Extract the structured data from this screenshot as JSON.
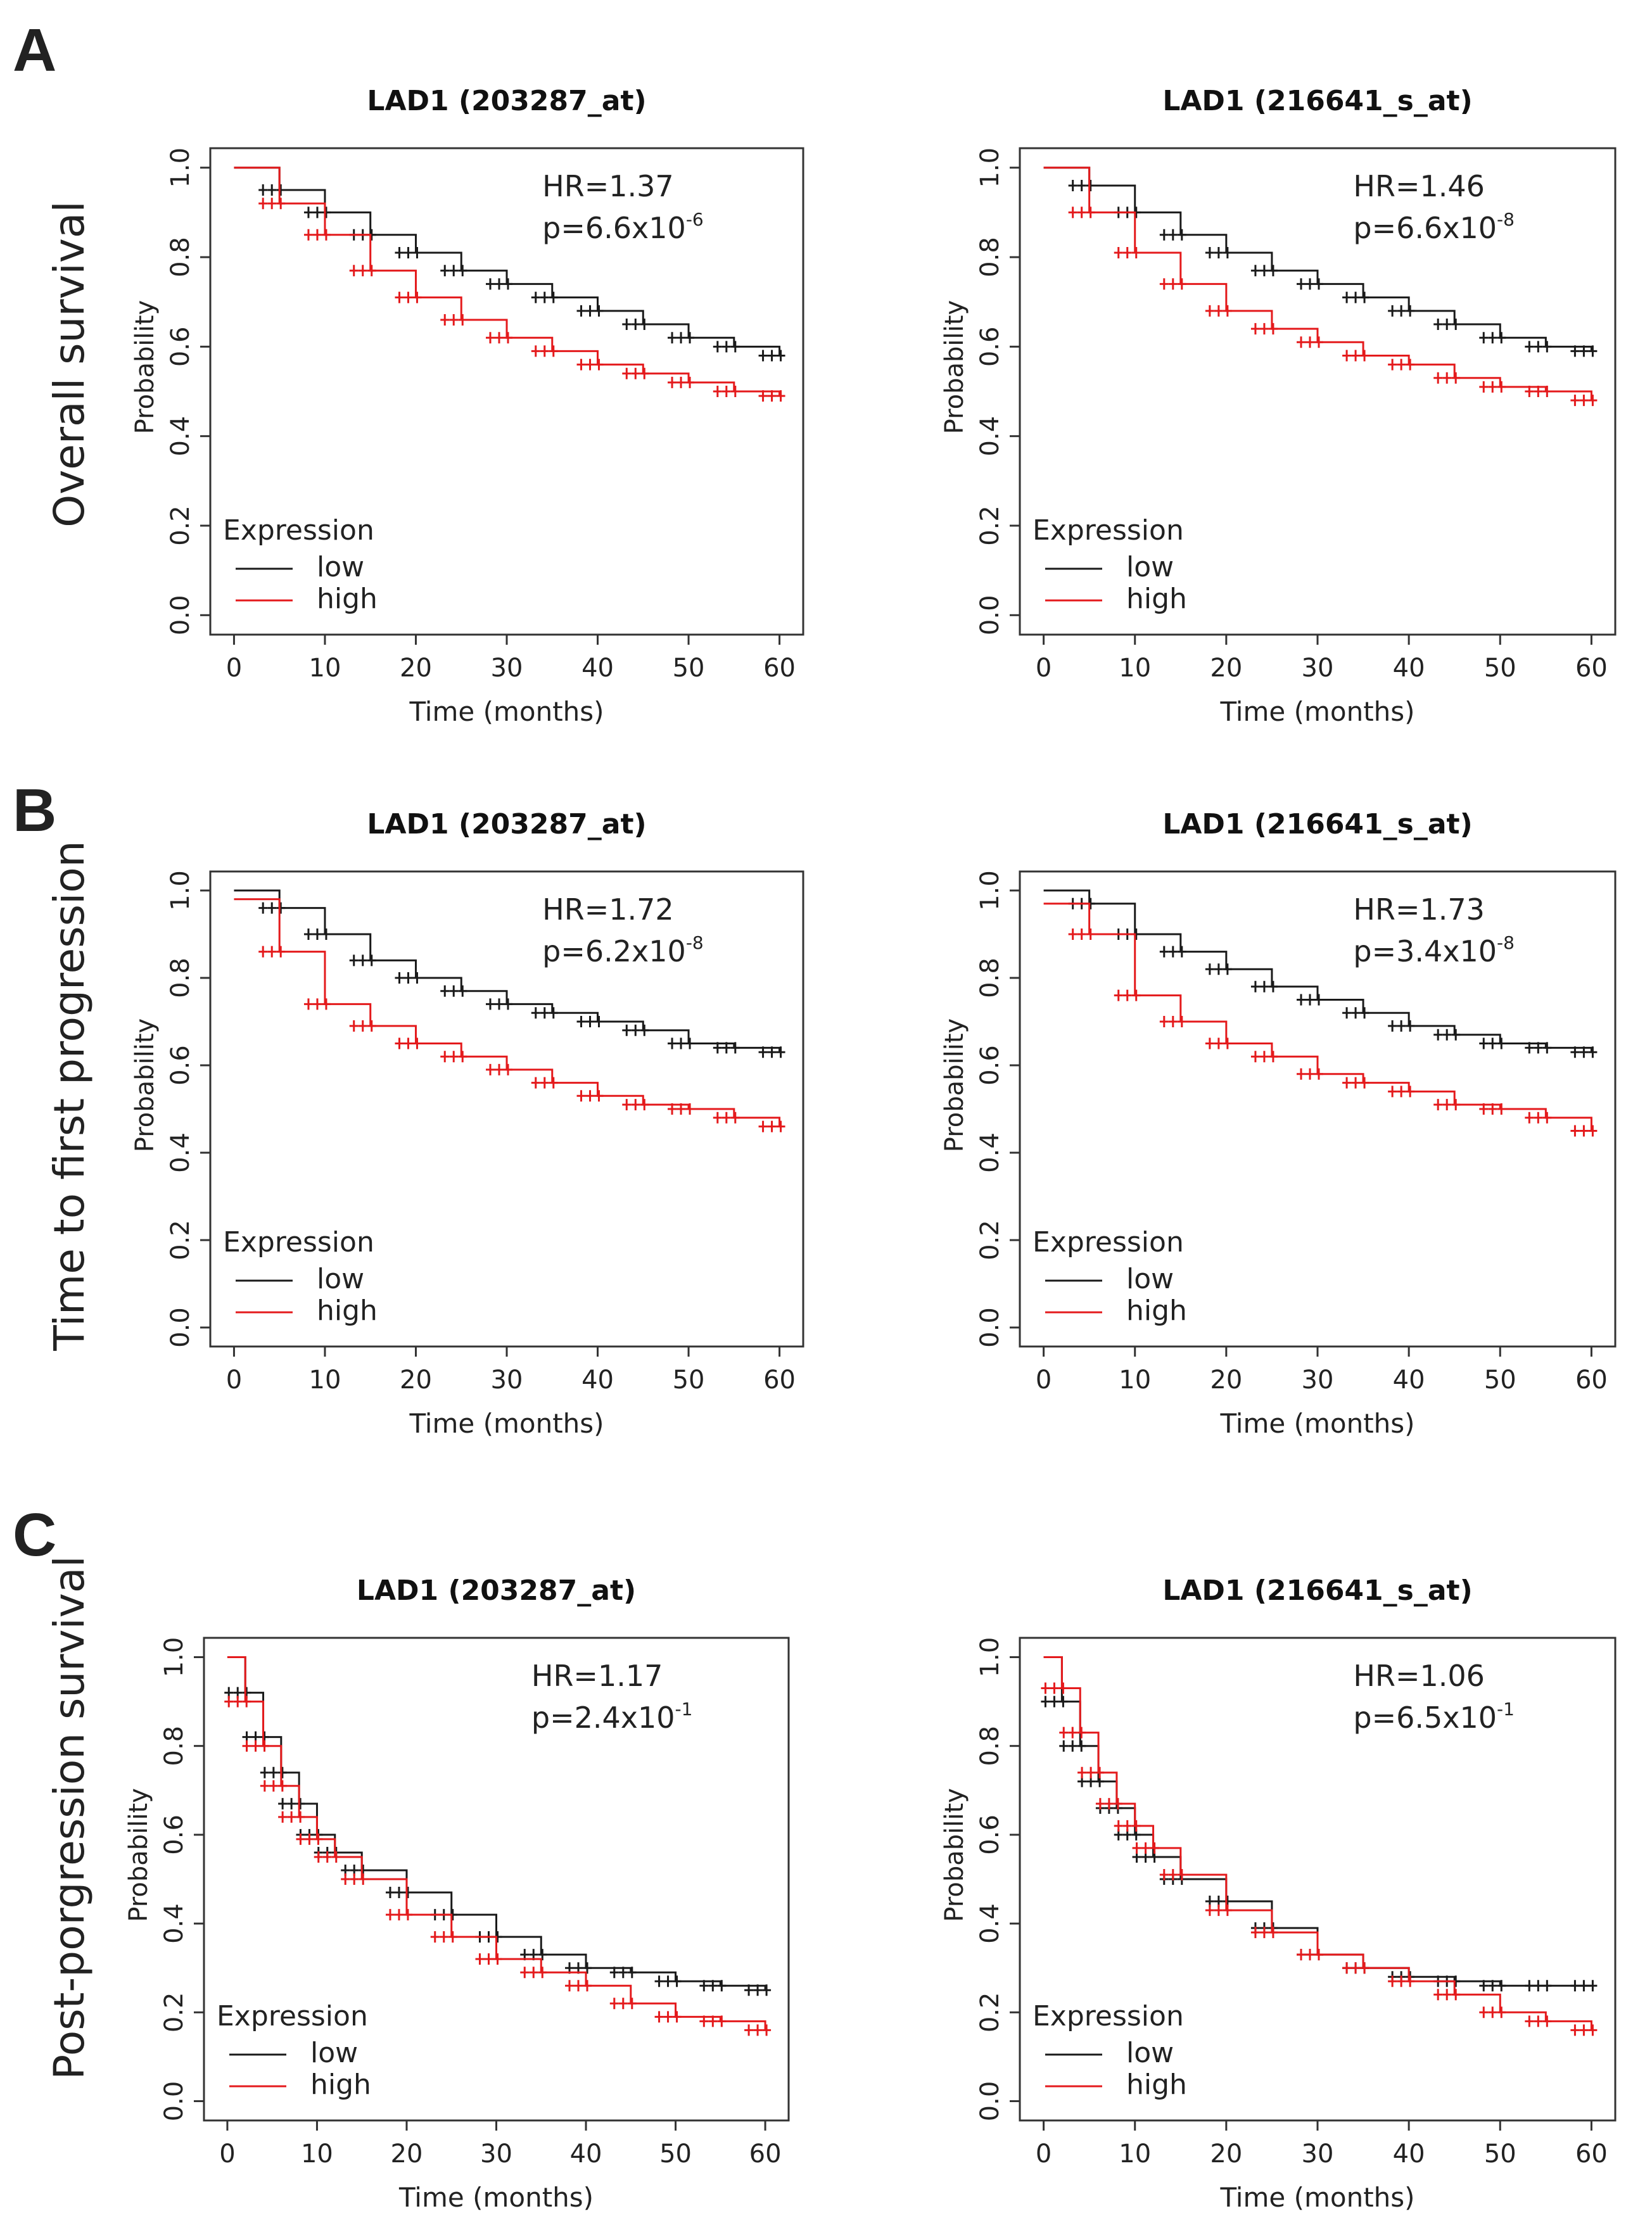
{
  "figure": {
    "rows": [
      {
        "letter": "A",
        "label": "Overall survival"
      },
      {
        "letter": "B",
        "label": "Time to first progression"
      },
      {
        "letter": "C",
        "label": "Post-porgression survival"
      }
    ]
  },
  "colors": {
    "low": "#1a1a1a",
    "high": "#e41a1c",
    "axis": "#333333"
  },
  "chart_data": [
    {
      "type": "line",
      "title": "LAD1 (203287_at)",
      "xlabel": "Time (months)",
      "ylabel": "Probability",
      "xlim": [
        0,
        60
      ],
      "ylim": [
        0,
        1
      ],
      "xticks": [
        "0",
        "10",
        "20",
        "30",
        "40",
        "50",
        "60"
      ],
      "yticks": [
        "0.0",
        "0.2",
        "0.4",
        "0.6",
        "0.8",
        "1.0"
      ],
      "hr": "HR=1.37",
      "p_base": "p=6.6x10",
      "p_exp": "-6",
      "legend_title": "Expression",
      "series": [
        {
          "name": "low",
          "x": [
            0,
            5,
            10,
            15,
            20,
            25,
            30,
            35,
            40,
            45,
            50,
            55,
            60
          ],
          "y": [
            1.0,
            0.95,
            0.9,
            0.85,
            0.81,
            0.77,
            0.74,
            0.71,
            0.68,
            0.65,
            0.62,
            0.6,
            0.58
          ]
        },
        {
          "name": "high",
          "x": [
            0,
            5,
            10,
            15,
            20,
            25,
            30,
            35,
            40,
            45,
            50,
            55,
            60
          ],
          "y": [
            1.0,
            0.92,
            0.85,
            0.77,
            0.71,
            0.66,
            0.62,
            0.59,
            0.56,
            0.54,
            0.52,
            0.5,
            0.49
          ]
        }
      ]
    },
    {
      "type": "line",
      "title": "LAD1 (216641_s_at)",
      "xlabel": "Time (months)",
      "ylabel": "Probability",
      "xlim": [
        0,
        60
      ],
      "ylim": [
        0,
        1
      ],
      "xticks": [
        "0",
        "10",
        "20",
        "30",
        "40",
        "50",
        "60"
      ],
      "yticks": [
        "0.0",
        "0.2",
        "0.4",
        "0.6",
        "0.8",
        "1.0"
      ],
      "hr": "HR=1.46",
      "p_base": "p=6.6x10",
      "p_exp": "-8",
      "legend_title": "Expression",
      "series": [
        {
          "name": "low",
          "x": [
            0,
            5,
            10,
            15,
            20,
            25,
            30,
            35,
            40,
            45,
            50,
            55,
            60
          ],
          "y": [
            1.0,
            0.96,
            0.9,
            0.85,
            0.81,
            0.77,
            0.74,
            0.71,
            0.68,
            0.65,
            0.62,
            0.6,
            0.59
          ]
        },
        {
          "name": "high",
          "x": [
            0,
            5,
            10,
            15,
            20,
            25,
            30,
            35,
            40,
            45,
            50,
            55,
            60
          ],
          "y": [
            1.0,
            0.9,
            0.81,
            0.74,
            0.68,
            0.64,
            0.61,
            0.58,
            0.56,
            0.53,
            0.51,
            0.5,
            0.48
          ]
        }
      ]
    },
    {
      "type": "line",
      "title": "LAD1 (203287_at)",
      "xlabel": "Time (months)",
      "ylabel": "Probability",
      "xlim": [
        0,
        60
      ],
      "ylim": [
        0,
        1
      ],
      "xticks": [
        "0",
        "10",
        "20",
        "30",
        "40",
        "50",
        "60"
      ],
      "yticks": [
        "0.0",
        "0.2",
        "0.4",
        "0.6",
        "0.8",
        "1.0"
      ],
      "hr": "HR=1.72",
      "p_base": "p=6.2x10",
      "p_exp": "-8",
      "legend_title": "Expression",
      "series": [
        {
          "name": "low",
          "x": [
            0,
            5,
            10,
            15,
            20,
            25,
            30,
            35,
            40,
            45,
            50,
            55,
            60
          ],
          "y": [
            1.0,
            0.96,
            0.9,
            0.84,
            0.8,
            0.77,
            0.74,
            0.72,
            0.7,
            0.68,
            0.65,
            0.64,
            0.63
          ]
        },
        {
          "name": "high",
          "x": [
            0,
            5,
            10,
            15,
            20,
            25,
            30,
            35,
            40,
            45,
            50,
            55,
            60
          ],
          "y": [
            0.98,
            0.86,
            0.74,
            0.69,
            0.65,
            0.62,
            0.59,
            0.56,
            0.53,
            0.51,
            0.5,
            0.48,
            0.46
          ]
        }
      ]
    },
    {
      "type": "line",
      "title": "LAD1 (216641_s_at)",
      "xlabel": "Time (months)",
      "ylabel": "Probability",
      "xlim": [
        0,
        60
      ],
      "ylim": [
        0,
        1
      ],
      "xticks": [
        "0",
        "10",
        "20",
        "30",
        "40",
        "50",
        "60"
      ],
      "yticks": [
        "0.0",
        "0.2",
        "0.4",
        "0.6",
        "0.8",
        "1.0"
      ],
      "hr": "HR=1.73",
      "p_base": "p=3.4x10",
      "p_exp": "-8",
      "legend_title": "Expression",
      "series": [
        {
          "name": "low",
          "x": [
            0,
            5,
            10,
            15,
            20,
            25,
            30,
            35,
            40,
            45,
            50,
            55,
            60
          ],
          "y": [
            1.0,
            0.97,
            0.9,
            0.86,
            0.82,
            0.78,
            0.75,
            0.72,
            0.69,
            0.67,
            0.65,
            0.64,
            0.63
          ]
        },
        {
          "name": "high",
          "x": [
            0,
            5,
            10,
            15,
            20,
            25,
            30,
            35,
            40,
            45,
            50,
            55,
            60
          ],
          "y": [
            0.97,
            0.9,
            0.76,
            0.7,
            0.65,
            0.62,
            0.58,
            0.56,
            0.54,
            0.51,
            0.5,
            0.48,
            0.45
          ]
        }
      ]
    },
    {
      "type": "line",
      "title": "LAD1 (203287_at)",
      "xlabel": "Time (months)",
      "ylabel": "Probability",
      "xlim": [
        0,
        60
      ],
      "ylim": [
        0,
        1
      ],
      "xticks": [
        "0",
        "10",
        "20",
        "30",
        "40",
        "50",
        "60"
      ],
      "yticks": [
        "0.0",
        "0.2",
        "0.4",
        "0.6",
        "0.8",
        "1.0"
      ],
      "hr": "HR=1.17",
      "p_base": "p=2.4x10",
      "p_exp": "-1",
      "legend_title": "Expression",
      "series": [
        {
          "name": "low",
          "x": [
            0,
            2,
            4,
            6,
            8,
            10,
            12,
            15,
            20,
            25,
            30,
            35,
            40,
            45,
            50,
            55,
            60
          ],
          "y": [
            1.0,
            0.92,
            0.82,
            0.74,
            0.67,
            0.6,
            0.56,
            0.52,
            0.47,
            0.42,
            0.37,
            0.33,
            0.3,
            0.29,
            0.27,
            0.26,
            0.25
          ]
        },
        {
          "name": "high",
          "x": [
            0,
            2,
            4,
            6,
            8,
            10,
            12,
            15,
            20,
            25,
            30,
            35,
            40,
            45,
            50,
            55,
            60
          ],
          "y": [
            1.0,
            0.9,
            0.8,
            0.71,
            0.64,
            0.59,
            0.55,
            0.5,
            0.42,
            0.37,
            0.32,
            0.29,
            0.26,
            0.22,
            0.19,
            0.18,
            0.16
          ]
        }
      ]
    },
    {
      "type": "line",
      "title": "LAD1 (216641_s_at)",
      "xlabel": "Time (months)",
      "ylabel": "Probability",
      "xlim": [
        0,
        60
      ],
      "ylim": [
        0,
        1
      ],
      "xticks": [
        "0",
        "10",
        "20",
        "30",
        "40",
        "50",
        "60"
      ],
      "yticks": [
        "0.0",
        "0.2",
        "0.4",
        "0.6",
        "0.8",
        "1.0"
      ],
      "hr": "HR=1.06",
      "p_base": "p=6.5x10",
      "p_exp": "-1",
      "legend_title": "Expression",
      "series": [
        {
          "name": "low",
          "x": [
            0,
            2,
            4,
            6,
            8,
            10,
            12,
            15,
            20,
            25,
            30,
            35,
            40,
            45,
            50,
            55,
            60
          ],
          "y": [
            1.0,
            0.9,
            0.8,
            0.72,
            0.66,
            0.6,
            0.55,
            0.5,
            0.45,
            0.39,
            0.33,
            0.3,
            0.28,
            0.27,
            0.26,
            0.26,
            0.26
          ]
        },
        {
          "name": "high",
          "x": [
            0,
            2,
            4,
            6,
            8,
            10,
            12,
            15,
            20,
            25,
            30,
            35,
            40,
            45,
            50,
            55,
            60
          ],
          "y": [
            1.0,
            0.93,
            0.83,
            0.74,
            0.67,
            0.62,
            0.57,
            0.51,
            0.43,
            0.38,
            0.33,
            0.3,
            0.27,
            0.24,
            0.2,
            0.18,
            0.16
          ]
        }
      ]
    }
  ]
}
